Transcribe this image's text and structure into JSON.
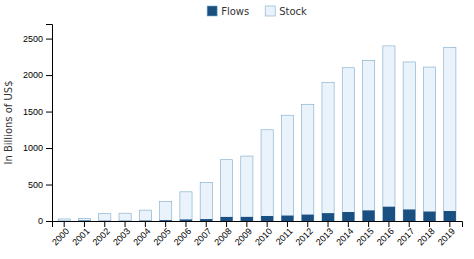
{
  "chart_data": {
    "type": "bar",
    "categories": [
      2000,
      2001,
      2002,
      2003,
      2004,
      2005,
      2006,
      2007,
      2008,
      2009,
      2010,
      2011,
      2012,
      2013,
      2014,
      2015,
      2016,
      2017,
      2018,
      2019
    ],
    "series": [
      {
        "name": "Flows",
        "color": "#1a4f82",
        "values": [
          0.9,
          6.9,
          2.7,
          2.9,
          5.5,
          12.3,
          21.2,
          26.5,
          55.9,
          56.5,
          68.8,
          74.7,
          87.8,
          107.8,
          123.1,
          145.7,
          196.1,
          158.3,
          129.8,
          136.9
        ]
      },
      {
        "name": "Stock",
        "color": "#eaf3fb",
        "values": [
          28,
          37,
          100,
          107,
          149,
          270,
          400,
          530,
          840,
          890,
          1250,
          1450,
          1600,
          1900,
          2100,
          2200,
          2400,
          2180,
          2110,
          2380
        ]
      }
    ],
    "ylabel": "In Billions of US$",
    "ylim": [
      0,
      2700
    ],
    "yticks": [
      0,
      500,
      1000,
      1500,
      2000,
      2500
    ],
    "grid": false,
    "legend": "top"
  }
}
